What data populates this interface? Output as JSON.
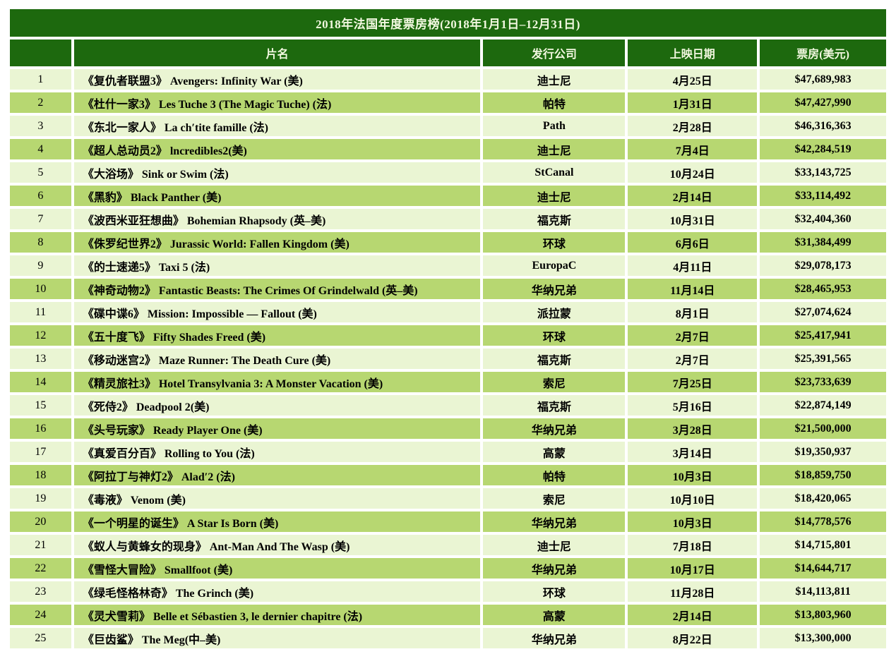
{
  "title": "2018年法国年度票房榜(2018年1月1日–12月31日)",
  "columns": {
    "rank": "",
    "film": "片名",
    "distributor": "发行公司",
    "release_date": "上映日期",
    "gross": "票房(美元)"
  },
  "rows": [
    {
      "rank": "1",
      "film": "《复仇者联盟3》 Avengers: Infinity War (美)",
      "distributor": "迪士尼",
      "release_date": "4月25日",
      "gross": "$47,689,983"
    },
    {
      "rank": "2",
      "film": "《杜什一家3》 Les Tuche 3 (The Magic Tuche) (法)",
      "distributor": "帕特",
      "release_date": "1月31日",
      "gross": "$47,427,990"
    },
    {
      "rank": "3",
      "film": "《东北一家人》 La ch′tite famille (法)",
      "distributor": "Path",
      "release_date": "2月28日",
      "gross": "$46,316,363"
    },
    {
      "rank": "4",
      "film": "《超人总动员2》 lncredibles2(美)",
      "distributor": "迪士尼",
      "release_date": "7月4日",
      "gross": "$42,284,519"
    },
    {
      "rank": "5",
      "film": "《大浴场》 Sink or Swim (法)",
      "distributor": "StCanal",
      "release_date": "10月24日",
      "gross": "$33,143,725"
    },
    {
      "rank": "6",
      "film": "《黑豹》 Black Panther (美)",
      "distributor": "迪士尼",
      "release_date": "2月14日",
      "gross": "$33,114,492"
    },
    {
      "rank": "7",
      "film": "《波西米亚狂想曲》 Bohemian Rhapsody (英–美)",
      "distributor": "福克斯",
      "release_date": "10月31日",
      "gross": "$32,404,360"
    },
    {
      "rank": "8",
      "film": "《侏罗纪世界2》 Jurassic World: Fallen Kingdom (美)",
      "distributor": "环球",
      "release_date": "6月6日",
      "gross": "$31,384,499"
    },
    {
      "rank": "9",
      "film": "《的士速递5》 Taxi 5 (法)",
      "distributor": "EuropaC",
      "release_date": "4月11日",
      "gross": "$29,078,173"
    },
    {
      "rank": "10",
      "film": "《神奇动物2》 Fantastic Beasts: The Crimes Of Grindelwald (英–美)",
      "distributor": "华纳兄弟",
      "release_date": "11月14日",
      "gross": "$28,465,953"
    },
    {
      "rank": "11",
      "film": "《碟中谍6》 Mission: Impossible — Fallout (美)",
      "distributor": "派拉蒙",
      "release_date": "8月1日",
      "gross": "$27,074,624"
    },
    {
      "rank": "12",
      "film": "《五十度飞》 Fifty Shades Freed (美)",
      "distributor": "环球",
      "release_date": "2月7日",
      "gross": "$25,417,941"
    },
    {
      "rank": "13",
      "film": "《移动迷宫2》 Maze Runner: The Death Cure (美)",
      "distributor": "福克斯",
      "release_date": "2月7日",
      "gross": "$25,391,565"
    },
    {
      "rank": "14",
      "film": "《精灵旅社3》 Hotel Transylvania 3: A Monster Vacation (美)",
      "distributor": "索尼",
      "release_date": "7月25日",
      "gross": "$23,733,639"
    },
    {
      "rank": "15",
      "film": "《死侍2》 Deadpool 2(美)",
      "distributor": "福克斯",
      "release_date": "5月16日",
      "gross": "$22,874,149"
    },
    {
      "rank": "16",
      "film": "《头号玩家》 Ready Player One (美)",
      "distributor": "华纳兄弟",
      "release_date": "3月28日",
      "gross": "$21,500,000"
    },
    {
      "rank": "17",
      "film": "《真爱百分百》 Rolling to You (法)",
      "distributor": "高蒙",
      "release_date": "3月14日",
      "gross": "$19,350,937"
    },
    {
      "rank": "18",
      "film": "《阿拉丁与神灯2》 Alad′2 (法)",
      "distributor": "帕特",
      "release_date": "10月3日",
      "gross": "$18,859,750"
    },
    {
      "rank": "19",
      "film": "《毒液》 Venom (美)",
      "distributor": "索尼",
      "release_date": "10月10日",
      "gross": "$18,420,065"
    },
    {
      "rank": "20",
      "film": "《一个明星的诞生》 A Star Is Born (美)",
      "distributor": "华纳兄弟",
      "release_date": "10月3日",
      "gross": "$14,778,576"
    },
    {
      "rank": "21",
      "film": "《蚁人与黄蜂女的现身》 Ant-Man And The Wasp (美)",
      "distributor": "迪士尼",
      "release_date": "7月18日",
      "gross": "$14,715,801"
    },
    {
      "rank": "22",
      "film": "《雪怪大冒险》 Smallfoot (美)",
      "distributor": "华纳兄弟",
      "release_date": "10月17日",
      "gross": "$14,644,717"
    },
    {
      "rank": "23",
      "film": "《绿毛怪格林奇》 The Grinch (美)",
      "distributor": "环球",
      "release_date": "11月28日",
      "gross": "$14,113,811"
    },
    {
      "rank": "24",
      "film": "《灵犬雪莉》 Belle et Sébastien 3, le dernier chapitre (法)",
      "distributor": "高蒙",
      "release_date": "2月14日",
      "gross": "$13,803,960"
    },
    {
      "rank": "25",
      "film": "《巨齿鲨》 The Meg(中–美)",
      "distributor": "华纳兄弟",
      "release_date": "8月22日",
      "gross": "$13,300,000"
    }
  ],
  "colors": {
    "header_bg": "#1d690e",
    "header_text": "#f2f8e0",
    "row_light": "#eaf5d3",
    "row_dark": "#b7d771",
    "page_bg": "#ffffff"
  }
}
